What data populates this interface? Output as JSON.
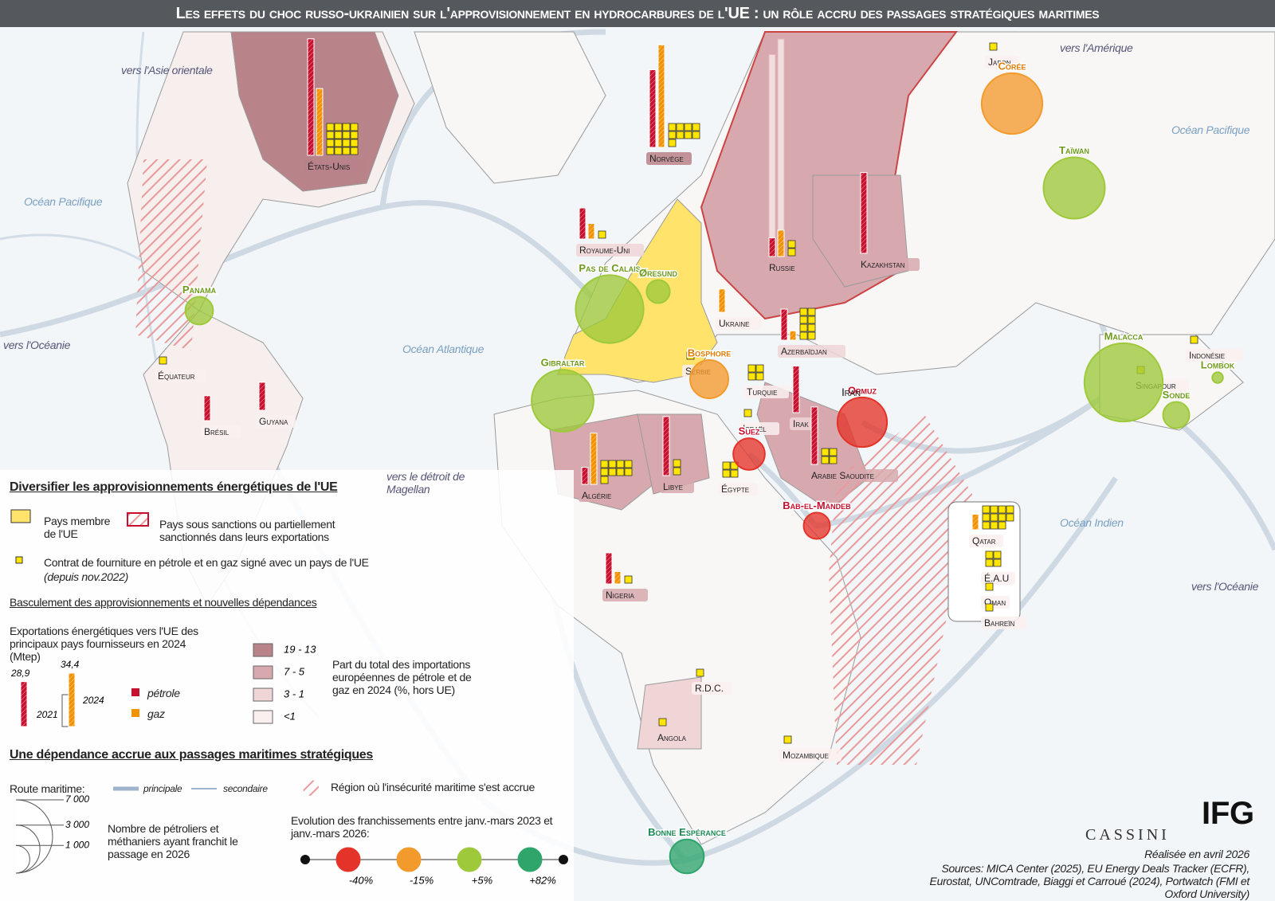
{
  "title": "Les effets du choc russo-ukrainien sur l'approvisionnement en hydrocarbures de l'UE : un rôle accru des passages stratégiques maritimes",
  "map_labels": [
    "vers l'Asie orientale",
    "vers l'Amérique",
    "Océan Pacifique",
    "Océan Pacifique",
    "vers l'Océanie",
    "Océan Atlantique",
    "vers le détroit de Magellan",
    "Océan Indien",
    "vers l'Océanie",
    "Iran"
  ],
  "countries": [
    {
      "name": "États-Unis",
      "oil": 75,
      "gas": 43,
      "contracts": 16,
      "share": 0
    },
    {
      "name": "Norvège",
      "oil": 50,
      "gas": 66,
      "contracts": 9,
      "share": 0
    },
    {
      "name": "Royaume-Uni",
      "oil": 20,
      "gas": 10,
      "contracts": 1,
      "share": 2
    },
    {
      "name": "Russie",
      "oil": 12,
      "gas": 17,
      "oil_2021": 130,
      "gas_2021": 140,
      "contracts": 2,
      "share": 1
    },
    {
      "name": "Kazakhstan",
      "oil": 52,
      "contracts": 0,
      "share": 1
    },
    {
      "name": "Ukraine",
      "gas": 15,
      "contracts": 0,
      "share": 3
    },
    {
      "name": "Azerbaïdjan",
      "oil": 20,
      "gas": 6,
      "contracts": 8,
      "share": 2
    },
    {
      "name": "Algérie",
      "oil": 11,
      "gas": 33,
      "contracts": 9,
      "share": 1
    },
    {
      "name": "Libye",
      "oil": 38,
      "contracts": 2,
      "share": 1
    },
    {
      "name": "Égypte",
      "contracts": 4,
      "share": 3
    },
    {
      "name": "Irak",
      "oil": 30,
      "contracts": 0,
      "share": 2
    },
    {
      "name": "Arabie Saoudite",
      "oil": 37,
      "contracts": 4,
      "share": 1
    },
    {
      "name": "Nigeria",
      "oil": 20,
      "gas": 8,
      "contracts": 1,
      "share": 1
    },
    {
      "name": "Brésil",
      "oil": 16,
      "contracts": 0,
      "share": 3
    },
    {
      "name": "Guyana",
      "oil": 18,
      "contracts": 0,
      "share": 3
    },
    {
      "name": "Qatar",
      "gas": 10,
      "contracts": 11,
      "share": 3
    },
    {
      "name": "É.A.U",
      "contracts": 4,
      "share": 3
    },
    {
      "name": "Oman",
      "contracts": 1,
      "share": 3
    },
    {
      "name": "Bahreïn",
      "contracts": 1,
      "share": 3
    },
    {
      "name": "Turquie",
      "contracts": 4,
      "share": 3
    },
    {
      "name": "Serbie",
      "contracts": 1,
      "share": 3
    },
    {
      "name": "Israël",
      "contracts": 1,
      "share": 3
    },
    {
      "name": "Équateur",
      "contracts": 1,
      "share": 3
    },
    {
      "name": "Japon",
      "contracts": 1,
      "share": 3
    },
    {
      "name": "Indonésie",
      "contracts": 1,
      "share": 3
    },
    {
      "name": "Singapour",
      "contracts": 1,
      "share": 3
    },
    {
      "name": "R.D.C.",
      "contracts": 1,
      "share": 3
    },
    {
      "name": "Angola",
      "contracts": 1,
      "share": 2
    },
    {
      "name": "Mozambique",
      "contracts": 1,
      "share": 3
    }
  ],
  "passages": [
    {
      "name": "Panama",
      "ships": 1000,
      "change_class": 2
    },
    {
      "name": "Pas de Calais",
      "ships": 6000,
      "change_class": 2
    },
    {
      "name": "Øresund",
      "ships": 700,
      "change_class": 2
    },
    {
      "name": "Gibraltar",
      "ships": 5000,
      "change_class": 2
    },
    {
      "name": "Bosphore",
      "ships": 1900,
      "change_class": 1
    },
    {
      "name": "Suez",
      "ships": 1300,
      "change_class": 0
    },
    {
      "name": "Ormuz",
      "ships": 3200,
      "change_class": 0
    },
    {
      "name": "Bab-el-Mandeb",
      "ships": 900,
      "change_class": 0
    },
    {
      "name": "Corée",
      "ships": 4800,
      "change_class": 1
    },
    {
      "name": "Taïwan",
      "ships": 4900,
      "change_class": 2
    },
    {
      "name": "Malacca",
      "ships": 8000,
      "change_class": 2
    },
    {
      "name": "Sonde",
      "ships": 900,
      "change_class": 2
    },
    {
      "name": "Lombok",
      "ships": 150,
      "change_class": 2
    },
    {
      "name": "Bonne Espérance",
      "ships": 1500,
      "change_class": 3
    }
  ],
  "legend": {
    "section1_title": "Diversifier les approvisionnements énergétiques de l'UE",
    "eu_member": "Pays membre de l'UE",
    "sanctioned": "Pays sous sanctions ou partiellement sanctionnés dans leurs exportations",
    "contract": "Contrat de fourniture en pétrole et en gaz signé avec un pays de l'UE",
    "contract_since": "(depuis nov.2022)",
    "subsection": "Basculement des approvisionnements et nouvelles dépendances",
    "exports_title": "Exportations énergétiques vers l'UE des principaux pays fournisseurs en 2024 (Mtep)",
    "sample_oil": {
      "value": 28.9,
      "label": "28,9"
    },
    "sample_gas": {
      "value": 34.4,
      "label": "34,4"
    },
    "year_2021": "2021",
    "year_2024": "2024",
    "oil": "pétrole",
    "gas": "gaz",
    "oil_color": "#c8102e",
    "gas_color": "#f39200",
    "share_classes": [
      {
        "label": "19 - 13",
        "color": "#b9838a"
      },
      {
        "label": "7 - 5",
        "color": "#d7a9ae"
      },
      {
        "label": "3 - 1",
        "color": "#f0d5d7"
      },
      {
        "label": "<1",
        "color": "#fbf0f0"
      }
    ],
    "share_title": "Part du total des importations européennes de pétrole et de gaz en 2024 (%, hors UE)",
    "section2_title": "Une dépendance accrue aux passages maritimes stratégiques",
    "route": "Route maritime:",
    "main": "principale",
    "secondary": "secondaire",
    "insecurity": "Région où l'insécurité maritime s'est accrue",
    "size_ticks": [
      {
        "value": 7000,
        "label": "7 000"
      },
      {
        "value": 3000,
        "label": "3 000"
      },
      {
        "value": 1000,
        "label": "1 000"
      }
    ],
    "size_title": "Nombre de pétroliers et méthaniers ayant franchit le passage en 2026",
    "evolution_title": "Evolution des franchissements entre janv.-mars 2023 et janv.-mars 2026:",
    "evolution_classes": [
      {
        "value": -40,
        "label": "-40%",
        "color": "#e4342a"
      },
      {
        "value": -15,
        "label": "-15%",
        "color": "#f39a2d"
      },
      {
        "value": 5,
        "label": "+5%",
        "color": "#9dc93b"
      },
      {
        "value": 82,
        "label": "+82%",
        "color": "#2fa56c"
      }
    ]
  },
  "credits": {
    "date": "Réalisée en avril 2026",
    "sources": "Sources: MICA Center (2025), EU Energy Deals Tracker (ECFR), Eurostat, UNComtrade, Biaggi et Carroué (2024), Portwatch (FMI et Oxford University)",
    "logo1": "CASSINI",
    "logo2": "IFG"
  }
}
